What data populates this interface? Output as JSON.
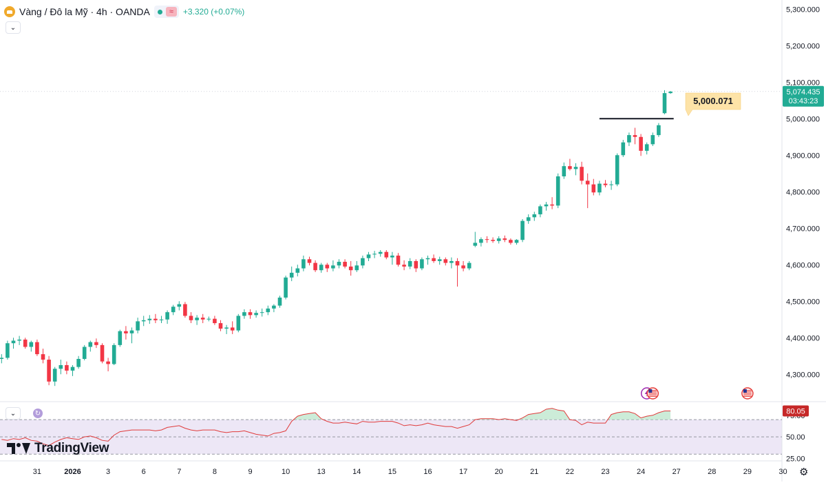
{
  "header": {
    "symbol_title": "Vàng / Đô la Mỹ · 4h · OANDA",
    "change": "+3.320 (+0.07%)",
    "symbol_icon": "gold-coin-icon",
    "status_icon": "market-open-dot-icon",
    "wave_icon": "wave-icon"
  },
  "colors": {
    "up": "#22ab94",
    "down": "#f23645",
    "rsi": "#e03a3a",
    "rsi_band": "#ede7f6",
    "price_label": "#22ab94",
    "callout": "#fde3a7",
    "logo": "#131722"
  },
  "price_label": {
    "price": "5,074.435",
    "countdown": "03:43:23"
  },
  "callout": {
    "text": "5,000.071"
  },
  "rsi_label": {
    "value": "80.05"
  },
  "branding": {
    "logo_text": "TradingView"
  },
  "chart_data": [
    {
      "type": "candlestick",
      "title": "",
      "xlabel": "",
      "ylabel": "",
      "ylim": [
        4225,
        5325
      ],
      "y_ticks": [
        4300,
        4400,
        4500,
        4600,
        4700,
        4800,
        4900,
        5000,
        5100,
        5200,
        5300
      ],
      "y_tick_labels": [
        "4,300.000",
        "4,400.000",
        "4,500.000",
        "4,600.000",
        "4,700.000",
        "4,800.000",
        "4,900.000",
        "5,000.000",
        "5,100.000",
        "5,200.000",
        "5,300.000"
      ],
      "x_tick_labels": [
        {
          "label": "31",
          "bar": 6
        },
        {
          "label": "2026",
          "bar": 12
        },
        {
          "label": "3",
          "bar": 18
        },
        {
          "label": "6",
          "bar": 24
        },
        {
          "label": "7",
          "bar": 30
        },
        {
          "label": "8",
          "bar": 36
        },
        {
          "label": "9",
          "bar": 42
        },
        {
          "label": "10",
          "bar": 48
        },
        {
          "label": "13",
          "bar": 54
        },
        {
          "label": "14",
          "bar": 60
        },
        {
          "label": "15",
          "bar": 66
        },
        {
          "label": "16",
          "bar": 72
        },
        {
          "label": "17",
          "bar": 78
        },
        {
          "label": "20",
          "bar": 84
        },
        {
          "label": "21",
          "bar": 90
        },
        {
          "label": "22",
          "bar": 96
        },
        {
          "label": "23",
          "bar": 102
        },
        {
          "label": "24",
          "bar": 108
        },
        {
          "label": "27",
          "bar": 114
        },
        {
          "label": "28",
          "bar": 120
        },
        {
          "label": "29",
          "bar": 126
        },
        {
          "label": "30",
          "bar": 132
        }
      ],
      "last_price": 5074.435,
      "horizontal_line": {
        "price": 5000.071,
        "from_bar": 101,
        "to_bar": 114
      },
      "event_markers": [
        {
          "bar": 109,
          "icon": "lightning-icon"
        },
        {
          "bar": 110,
          "icon": "us-flag-icon"
        },
        {
          "bar": 126,
          "icon": "us-flag-icon"
        }
      ],
      "candles": [
        [
          4342,
          4355,
          4330,
          4345
        ],
        [
          4345,
          4392,
          4340,
          4385
        ],
        [
          4385,
          4400,
          4370,
          4392
        ],
        [
          4392,
          4405,
          4380,
          4395
        ],
        [
          4395,
          4400,
          4370,
          4375
        ],
        [
          4375,
          4392,
          4362,
          4388
        ],
        [
          4388,
          4395,
          4350,
          4355
        ],
        [
          4355,
          4370,
          4330,
          4340
        ],
        [
          4340,
          4350,
          4270,
          4280
        ],
        [
          4280,
          4320,
          4268,
          4315
        ],
        [
          4315,
          4340,
          4300,
          4325
        ],
        [
          4325,
          4335,
          4300,
          4310
        ],
        [
          4310,
          4325,
          4295,
          4320
        ],
        [
          4320,
          4350,
          4315,
          4342
        ],
        [
          4342,
          4380,
          4338,
          4375
        ],
        [
          4375,
          4392,
          4362,
          4388
        ],
        [
          4388,
          4398,
          4372,
          4380
        ],
        [
          4380,
          4385,
          4330,
          4335
        ],
        [
          4335,
          4345,
          4308,
          4328
        ],
        [
          4328,
          4385,
          4325,
          4380
        ],
        [
          4380,
          4422,
          4375,
          4418
        ],
        [
          4418,
          4432,
          4395,
          4412
        ],
        [
          4412,
          4428,
          4385,
          4420
        ],
        [
          4420,
          4455,
          4412,
          4445
        ],
        [
          4445,
          4460,
          4432,
          4448
        ],
        [
          4448,
          4462,
          4438,
          4452
        ],
        [
          4452,
          4465,
          4440,
          4448
        ],
        [
          4448,
          4460,
          4440,
          4450
        ],
        [
          4450,
          4475,
          4438,
          4470
        ],
        [
          4470,
          4490,
          4462,
          4485
        ],
        [
          4485,
          4500,
          4475,
          4492
        ],
        [
          4492,
          4498,
          4455,
          4460
        ],
        [
          4460,
          4470,
          4440,
          4448
        ],
        [
          4448,
          4462,
          4435,
          4455
        ],
        [
          4455,
          4465,
          4440,
          4450
        ],
        [
          4450,
          4458,
          4445,
          4452
        ],
        [
          4452,
          4460,
          4435,
          4440
        ],
        [
          4440,
          4448,
          4418,
          4425
        ],
        [
          4425,
          4435,
          4410,
          4428
        ],
        [
          4428,
          4445,
          4410,
          4420
        ],
        [
          4420,
          4465,
          4415,
          4460
        ],
        [
          4460,
          4478,
          4452,
          4470
        ],
        [
          4470,
          4478,
          4452,
          4462
        ],
        [
          4462,
          4475,
          4455,
          4468
        ],
        [
          4468,
          4480,
          4458,
          4470
        ],
        [
          4470,
          4488,
          4462,
          4480
        ],
        [
          4480,
          4492,
          4470,
          4488
        ],
        [
          4488,
          4515,
          4482,
          4510
        ],
        [
          4510,
          4570,
          4505,
          4565
        ],
        [
          4565,
          4595,
          4555,
          4578
        ],
        [
          4578,
          4600,
          4568,
          4590
        ],
        [
          4590,
          4625,
          4582,
          4615
        ],
        [
          4615,
          4622,
          4598,
          4605
        ],
        [
          4605,
          4612,
          4580,
          4585
        ],
        [
          4585,
          4605,
          4578,
          4600
        ],
        [
          4600,
          4605,
          4580,
          4590
        ],
        [
          4590,
          4612,
          4582,
          4598
        ],
        [
          4598,
          4615,
          4590,
          4608
        ],
        [
          4608,
          4615,
          4590,
          4595
        ],
        [
          4595,
          4610,
          4570,
          4585
        ],
        [
          4585,
          4610,
          4580,
          4598
        ],
        [
          4598,
          4625,
          4590,
          4618
        ],
        [
          4618,
          4635,
          4610,
          4628
        ],
        [
          4628,
          4638,
          4618,
          4630
        ],
        [
          4630,
          4640,
          4622,
          4635
        ],
        [
          4635,
          4640,
          4615,
          4620
        ],
        [
          4620,
          4635,
          4600,
          4625
        ],
        [
          4625,
          4632,
          4595,
          4600
        ],
        [
          4600,
          4612,
          4585,
          4595
        ],
        [
          4595,
          4618,
          4588,
          4610
        ],
        [
          4610,
          4615,
          4580,
          4590
        ],
        [
          4590,
          4620,
          4585,
          4615
        ],
        [
          4615,
          4625,
          4600,
          4618
        ],
        [
          4618,
          4628,
          4605,
          4610
        ],
        [
          4610,
          4622,
          4600,
          4615
        ],
        [
          4615,
          4620,
          4598,
          4605
        ],
        [
          4605,
          4620,
          4590,
          4610
        ],
        [
          4610,
          4618,
          4540,
          4598
        ],
        [
          4598,
          4610,
          4582,
          4590
        ],
        [
          4590,
          4610,
          4585,
          4605
        ],
        [
          4652,
          4690,
          4648,
          4660
        ],
        [
          4660,
          4675,
          4650,
          4670
        ],
        [
          4670,
          4678,
          4660,
          4668
        ],
        [
          4668,
          4675,
          4660,
          4665
        ],
        [
          4665,
          4678,
          4658,
          4672
        ],
        [
          4672,
          4680,
          4662,
          4668
        ],
        [
          4668,
          4672,
          4655,
          4660
        ],
        [
          4660,
          4670,
          4655,
          4668
        ],
        [
          4668,
          4725,
          4662,
          4720
        ],
        [
          4720,
          4738,
          4712,
          4730
        ],
        [
          4730,
          4745,
          4720,
          4738
        ],
        [
          4738,
          4765,
          4730,
          4760
        ],
        [
          4760,
          4772,
          4748,
          4765
        ],
        [
          4765,
          4785,
          4752,
          4762
        ],
        [
          4762,
          4850,
          4755,
          4842
        ],
        [
          4842,
          4880,
          4835,
          4870
        ],
        [
          4870,
          4890,
          4858,
          4862
        ],
        [
          4862,
          4878,
          4845,
          4868
        ],
        [
          4868,
          4882,
          4820,
          4830
        ],
        [
          4830,
          4850,
          4755,
          4820
        ],
        [
          4820,
          4835,
          4790,
          4798
        ],
        [
          4798,
          4830,
          4790,
          4822
        ],
        [
          4822,
          4832,
          4812,
          4818
        ],
        [
          4818,
          4830,
          4805,
          4820
        ],
        [
          4820,
          4905,
          4815,
          4900
        ],
        [
          4900,
          4942,
          4895,
          4935
        ],
        [
          4935,
          4962,
          4925,
          4955
        ],
        [
          4955,
          4975,
          4930,
          4950
        ],
        [
          4950,
          4958,
          4898,
          4912
        ],
        [
          4912,
          4935,
          4902,
          4930
        ],
        [
          4930,
          4962,
          4925,
          4955
        ],
        [
          4955,
          4988,
          4950,
          4982
        ],
        [
          5015,
          5078,
          5012,
          5070
        ],
        [
          5070,
          5076,
          5068,
          5074
        ]
      ]
    },
    {
      "type": "line",
      "title": "RSI",
      "xlabel": "",
      "ylabel": "",
      "ylim": [
        23,
        90
      ],
      "y_ticks": [
        25,
        50,
        75
      ],
      "y_tick_labels": [
        "25.00",
        "50.00",
        "75.00"
      ],
      "band": [
        30,
        70
      ],
      "last_value": 80.05,
      "values": [
        47,
        46,
        48,
        47,
        49,
        46,
        45,
        42,
        40,
        44,
        47,
        49,
        48,
        47,
        50,
        51,
        49,
        46,
        45,
        52,
        56,
        57,
        58,
        58,
        58,
        58,
        57,
        58,
        61,
        62,
        63,
        60,
        58,
        57,
        58,
        58,
        58,
        56,
        55,
        56,
        56,
        57,
        55,
        53,
        52,
        51,
        54,
        55,
        57,
        68,
        74,
        76,
        77,
        78,
        71,
        68,
        66,
        66,
        67,
        66,
        65,
        68,
        67,
        67,
        68,
        68,
        68,
        66,
        63,
        64,
        63,
        64,
        66,
        64,
        63,
        62,
        62,
        60,
        62,
        64,
        70,
        71,
        71,
        71,
        70,
        71,
        70,
        69,
        72,
        76,
        77,
        78,
        82,
        83,
        81,
        80,
        70,
        69,
        64,
        67,
        66,
        66,
        66,
        76,
        78,
        79,
        79,
        77,
        72,
        74,
        75,
        78,
        80,
        80
      ]
    }
  ]
}
